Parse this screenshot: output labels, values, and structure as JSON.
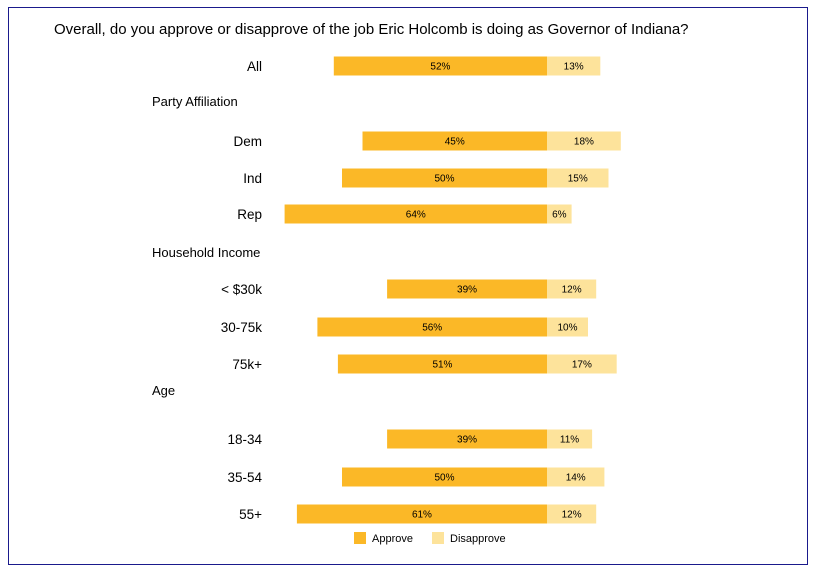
{
  "chart_data": {
    "type": "bar",
    "title": "Overall, do you approve or disapprove of the job Eric Holcomb is doing as Governor of Indiana?",
    "xlabel": "",
    "ylabel": "",
    "colors": {
      "Approve": "#fbb827",
      "Disapprove": "#fde39b"
    },
    "legend": {
      "position": "bottom",
      "entries": [
        "Approve",
        "Disapprove"
      ]
    },
    "rows": [
      {
        "kind": "category",
        "label": "All",
        "approve": 52,
        "disapprove": 13
      },
      {
        "kind": "group",
        "label": "Party Affiliation"
      },
      {
        "kind": "category",
        "label": "Dem",
        "approve": 45,
        "disapprove": 18
      },
      {
        "kind": "category",
        "label": "Ind",
        "approve": 50,
        "disapprove": 15
      },
      {
        "kind": "category",
        "label": "Rep",
        "approve": 64,
        "disapprove": 6
      },
      {
        "kind": "group",
        "label": "Household Income"
      },
      {
        "kind": "category",
        "label": "< $30k",
        "approve": 39,
        "disapprove": 12
      },
      {
        "kind": "category",
        "label": "30-75k",
        "approve": 56,
        "disapprove": 10
      },
      {
        "kind": "category",
        "label": "75k+",
        "approve": 51,
        "disapprove": 17
      },
      {
        "kind": "group",
        "label": "Age"
      },
      {
        "kind": "category",
        "label": "18-34",
        "approve": 39,
        "disapprove": 11
      },
      {
        "kind": "category",
        "label": "35-54",
        "approve": 50,
        "disapprove": 14
      },
      {
        "kind": "category",
        "label": "55+",
        "approve": 61,
        "disapprove": 12
      }
    ]
  }
}
